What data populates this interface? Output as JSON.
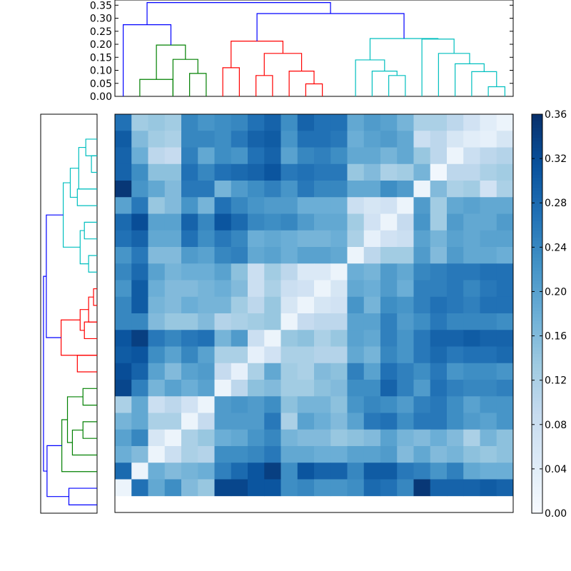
{
  "chart_data": [
    {
      "type": "dendrogram",
      "orientation": "top",
      "ylim": [
        0,
        0.37
      ],
      "yticks": [
        "0.00",
        "0.05",
        "0.10",
        "0.15",
        "0.20",
        "0.25",
        "0.30",
        "0.35"
      ],
      "tick_values": [
        0,
        0.05,
        0.1,
        0.15,
        0.2,
        0.25,
        0.3,
        0.35
      ],
      "leaf_count": 24,
      "links": [
        {
          "a": 1,
          "b": 3,
          "h": 0.065,
          "color": "#008000"
        },
        {
          "a": 4,
          "b": 5,
          "h": 0.088,
          "color": "#008000"
        },
        {
          "a": 3,
          "b": 4.5,
          "h": 0.142,
          "color": "#008000"
        },
        {
          "a": 2,
          "b": 3.75,
          "h": 0.197,
          "color": "#008000"
        },
        {
          "a": 0,
          "b": 2.875,
          "h": 0.275,
          "color": "#0000ff"
        },
        {
          "a": 6,
          "b": 7,
          "h": 0.11,
          "color": "#ff0000"
        },
        {
          "a": 8,
          "b": 9,
          "h": 0.08,
          "color": "#ff0000"
        },
        {
          "a": 11,
          "b": 12,
          "h": 0.048,
          "color": "#ff0000"
        },
        {
          "a": 10,
          "b": 11.5,
          "h": 0.097,
          "color": "#ff0000"
        },
        {
          "a": 8.5,
          "b": 10.75,
          "h": 0.165,
          "color": "#ff0000"
        },
        {
          "a": 6.5,
          "b": 9.625,
          "h": 0.212,
          "color": "#ff0000"
        },
        {
          "a": 16,
          "b": 17,
          "h": 0.08,
          "color": "#00bfbf"
        },
        {
          "a": 15,
          "b": 16.5,
          "h": 0.097,
          "color": "#00bfbf"
        },
        {
          "a": 14,
          "b": 15.75,
          "h": 0.14,
          "color": "#00bfbf"
        },
        {
          "a": 22,
          "b": 23,
          "h": 0.037,
          "color": "#00bfbf"
        },
        {
          "a": 21,
          "b": 22.5,
          "h": 0.095,
          "color": "#00bfbf"
        },
        {
          "a": 20,
          "b": 21.75,
          "h": 0.125,
          "color": "#00bfbf"
        },
        {
          "a": 19,
          "b": 20.875,
          "h": 0.165,
          "color": "#00bfbf"
        },
        {
          "a": 18,
          "b": 19.9375,
          "h": 0.22,
          "color": "#00bfbf"
        },
        {
          "a": 14.875,
          "b": 18.96875,
          "h": 0.222,
          "color": "#00bfbf"
        },
        {
          "a": 8.0625,
          "b": 16.921875,
          "h": 0.318,
          "color": "#0000ff"
        },
        {
          "a": 1.4375,
          "b": 12.4921875,
          "h": 0.36,
          "color": "#0000ff"
        }
      ]
    },
    {
      "type": "dendrogram",
      "orientation": "left",
      "leaf_count": 24,
      "scale_max": 0.37,
      "links": [
        {
          "a": 0,
          "b": 1,
          "h": 0.2,
          "color": "#0000ff"
        },
        {
          "a": 4,
          "b": 5,
          "h": 0.1,
          "color": "#008000"
        },
        {
          "a": 3,
          "b": 4.5,
          "h": 0.175,
          "color": "#008000"
        },
        {
          "a": 6,
          "b": 7,
          "h": 0.1,
          "color": "#008000"
        },
        {
          "a": 3.75,
          "b": 6.5,
          "h": 0.21,
          "color": "#008000"
        },
        {
          "a": 2,
          "b": 5.125,
          "h": 0.25,
          "color": "#008000"
        },
        {
          "a": 0.5,
          "b": 3.5625,
          "h": 0.355,
          "color": "#0000ff"
        },
        {
          "a": 8,
          "b": 9,
          "h": 0.14,
          "color": "#ff0000"
        },
        {
          "a": 10,
          "b": 11,
          "h": 0.09,
          "color": "#ff0000"
        },
        {
          "a": 12,
          "b": 13,
          "h": 0.025,
          "color": "#ff0000"
        },
        {
          "a": 11,
          "b": 12.5,
          "h": 0.06,
          "color": "#ff0000"
        },
        {
          "a": 10.5,
          "b": 11.75,
          "h": 0.12,
          "color": "#ff0000"
        },
        {
          "a": 9,
          "b": 11.125,
          "h": 0.255,
          "color": "#ff0000"
        },
        {
          "a": 14,
          "b": 15,
          "h": 0.06,
          "color": "#00bfbf"
        },
        {
          "a": 16,
          "b": 17,
          "h": 0.09,
          "color": "#00bfbf"
        },
        {
          "a": 14.5,
          "b": 16.5,
          "h": 0.12,
          "color": "#00bfbf"
        },
        {
          "a": 18,
          "b": 19,
          "h": 0.14,
          "color": "#00bfbf"
        },
        {
          "a": 20,
          "b": 21,
          "h": 0.04,
          "color": "#00bfbf"
        },
        {
          "a": 21,
          "b": 22,
          "h": 0.08,
          "color": "#00bfbf"
        },
        {
          "a": 19,
          "b": 21.5,
          "h": 0.13,
          "color": "#00bfbf"
        },
        {
          "a": 18.5,
          "b": 20.25,
          "h": 0.19,
          "color": "#00bfbf"
        },
        {
          "a": 15.5,
          "b": 19.375,
          "h": 0.24,
          "color": "#00bfbf"
        },
        {
          "a": 10.0625,
          "b": 17.4375,
          "h": 0.36,
          "color": "#0000ff"
        },
        {
          "a": 2.03125,
          "b": 13.75,
          "h": 0.38,
          "color": "#0000ff"
        }
      ]
    },
    {
      "type": "heatmap",
      "rows": 24,
      "cols": 24,
      "colormap": "Blues",
      "vmin": 0,
      "vmax": 0.36,
      "colorbar_ticks": [
        "0.00",
        "0.04",
        "0.08",
        "0.12",
        "0.16",
        "0.20",
        "0.24",
        "0.28",
        "0.32",
        "0.36"
      ],
      "colorbar_tick_values": [
        0,
        0.04,
        0.08,
        0.12,
        0.16,
        0.2,
        0.24,
        0.28,
        0.32,
        0.36
      ],
      "values": [
        [
          0.27,
          0.13,
          0.14,
          0.13,
          0.24,
          0.22,
          0.23,
          0.24,
          0.27,
          0.29,
          0.23,
          0.29,
          0.27,
          0.27,
          0.19,
          0.21,
          0.2,
          0.17,
          0.12,
          0.12,
          0.1,
          0.07,
          0.04,
          0.02
        ],
        [
          0.3,
          0.16,
          0.13,
          0.12,
          0.24,
          0.24,
          0.23,
          0.26,
          0.29,
          0.3,
          0.22,
          0.27,
          0.27,
          0.26,
          0.18,
          0.2,
          0.21,
          0.19,
          0.08,
          0.1,
          0.06,
          0.04,
          0.03,
          0.06
        ],
        [
          0.29,
          0.18,
          0.1,
          0.09,
          0.25,
          0.19,
          0.23,
          0.22,
          0.27,
          0.29,
          0.2,
          0.24,
          0.25,
          0.23,
          0.19,
          0.19,
          0.17,
          0.19,
          0.14,
          0.1,
          0.02,
          0.08,
          0.1,
          0.11
        ],
        [
          0.29,
          0.23,
          0.15,
          0.15,
          0.27,
          0.24,
          0.27,
          0.28,
          0.29,
          0.31,
          0.26,
          0.27,
          0.26,
          0.26,
          0.14,
          0.16,
          0.12,
          0.13,
          0.17,
          0.01,
          0.1,
          0.1,
          0.12,
          0.13
        ],
        [
          0.35,
          0.22,
          0.19,
          0.16,
          0.26,
          0.26,
          0.17,
          0.21,
          0.23,
          0.25,
          0.22,
          0.26,
          0.24,
          0.24,
          0.19,
          0.19,
          0.23,
          0.21,
          0.02,
          0.16,
          0.12,
          0.13,
          0.07,
          0.12
        ],
        [
          0.2,
          0.26,
          0.14,
          0.16,
          0.22,
          0.17,
          0.27,
          0.24,
          0.22,
          0.21,
          0.21,
          0.18,
          0.18,
          0.18,
          0.08,
          0.06,
          0.07,
          0.02,
          0.21,
          0.13,
          0.19,
          0.2,
          0.19,
          0.19
        ],
        [
          0.28,
          0.32,
          0.2,
          0.2,
          0.29,
          0.24,
          0.31,
          0.28,
          0.24,
          0.23,
          0.24,
          0.21,
          0.19,
          0.19,
          0.13,
          0.07,
          0.02,
          0.09,
          0.22,
          0.13,
          0.21,
          0.19,
          0.19,
          0.21
        ],
        [
          0.27,
          0.29,
          0.19,
          0.19,
          0.27,
          0.23,
          0.26,
          0.24,
          0.18,
          0.19,
          0.18,
          0.17,
          0.17,
          0.18,
          0.12,
          0.03,
          0.07,
          0.08,
          0.2,
          0.17,
          0.2,
          0.19,
          0.2,
          0.2
        ],
        [
          0.22,
          0.26,
          0.16,
          0.16,
          0.21,
          0.2,
          0.24,
          0.25,
          0.19,
          0.2,
          0.18,
          0.2,
          0.2,
          0.19,
          0.02,
          0.1,
          0.13,
          0.13,
          0.21,
          0.16,
          0.21,
          0.19,
          0.19,
          0.18
        ],
        [
          0.24,
          0.28,
          0.2,
          0.17,
          0.18,
          0.18,
          0.2,
          0.15,
          0.08,
          0.13,
          0.1,
          0.05,
          0.05,
          0.02,
          0.18,
          0.17,
          0.21,
          0.19,
          0.24,
          0.25,
          0.26,
          0.26,
          0.27,
          0.27
        ],
        [
          0.22,
          0.3,
          0.18,
          0.16,
          0.16,
          0.17,
          0.18,
          0.16,
          0.08,
          0.12,
          0.08,
          0.07,
          0.02,
          0.06,
          0.19,
          0.18,
          0.21,
          0.18,
          0.25,
          0.25,
          0.26,
          0.24,
          0.26,
          0.27
        ],
        [
          0.24,
          0.3,
          0.17,
          0.16,
          0.18,
          0.17,
          0.17,
          0.13,
          0.1,
          0.14,
          0.06,
          0.02,
          0.06,
          0.07,
          0.22,
          0.17,
          0.23,
          0.22,
          0.25,
          0.27,
          0.26,
          0.25,
          0.27,
          0.27
        ],
        [
          0.24,
          0.24,
          0.16,
          0.14,
          0.14,
          0.16,
          0.11,
          0.12,
          0.13,
          0.14,
          0.02,
          0.09,
          0.1,
          0.1,
          0.2,
          0.2,
          0.25,
          0.21,
          0.23,
          0.26,
          0.24,
          0.24,
          0.24,
          0.23
        ],
        [
          0.31,
          0.34,
          0.26,
          0.24,
          0.26,
          0.27,
          0.17,
          0.21,
          0.08,
          0.02,
          0.14,
          0.15,
          0.12,
          0.14,
          0.2,
          0.19,
          0.25,
          0.22,
          0.26,
          0.29,
          0.29,
          0.3,
          0.29,
          0.29
        ],
        [
          0.3,
          0.31,
          0.23,
          0.2,
          0.24,
          0.2,
          0.12,
          0.12,
          0.03,
          0.07,
          0.12,
          0.12,
          0.11,
          0.11,
          0.19,
          0.17,
          0.24,
          0.22,
          0.26,
          0.28,
          0.26,
          0.27,
          0.27,
          0.28
        ],
        [
          0.32,
          0.29,
          0.2,
          0.16,
          0.2,
          0.21,
          0.09,
          0.03,
          0.12,
          0.19,
          0.13,
          0.12,
          0.16,
          0.15,
          0.25,
          0.2,
          0.27,
          0.25,
          0.23,
          0.26,
          0.22,
          0.23,
          0.23,
          0.22
        ],
        [
          0.33,
          0.25,
          0.17,
          0.2,
          0.18,
          0.2,
          0.02,
          0.1,
          0.15,
          0.16,
          0.13,
          0.13,
          0.15,
          0.16,
          0.23,
          0.23,
          0.29,
          0.25,
          0.21,
          0.27,
          0.25,
          0.24,
          0.24,
          0.25
        ],
        [
          0.12,
          0.19,
          0.08,
          0.1,
          0.07,
          0.02,
          0.21,
          0.22,
          0.21,
          0.23,
          0.15,
          0.17,
          0.17,
          0.15,
          0.22,
          0.24,
          0.23,
          0.21,
          0.25,
          0.26,
          0.23,
          0.2,
          0.22,
          0.22
        ],
        [
          0.17,
          0.19,
          0.12,
          0.12,
          0.02,
          0.09,
          0.21,
          0.21,
          0.21,
          0.26,
          0.12,
          0.2,
          0.18,
          0.16,
          0.2,
          0.26,
          0.27,
          0.23,
          0.26,
          0.26,
          0.23,
          0.21,
          0.2,
          0.22
        ],
        [
          0.2,
          0.24,
          0.06,
          0.02,
          0.12,
          0.14,
          0.18,
          0.19,
          0.22,
          0.24,
          0.17,
          0.16,
          0.16,
          0.14,
          0.15,
          0.16,
          0.2,
          0.17,
          0.16,
          0.18,
          0.16,
          0.12,
          0.17,
          0.15
        ],
        [
          0.18,
          0.16,
          0.02,
          0.08,
          0.12,
          0.11,
          0.23,
          0.23,
          0.24,
          0.26,
          0.19,
          0.19,
          0.18,
          0.18,
          0.2,
          0.2,
          0.21,
          0.16,
          0.19,
          0.16,
          0.17,
          0.15,
          0.14,
          0.15
        ],
        [
          0.28,
          0.02,
          0.18,
          0.16,
          0.17,
          0.18,
          0.25,
          0.28,
          0.31,
          0.34,
          0.23,
          0.31,
          0.29,
          0.29,
          0.24,
          0.3,
          0.3,
          0.26,
          0.25,
          0.22,
          0.25,
          0.19,
          0.18,
          0.18
        ],
        [
          0.02,
          0.27,
          0.19,
          0.23,
          0.16,
          0.14,
          0.33,
          0.33,
          0.31,
          0.31,
          0.23,
          0.24,
          0.22,
          0.22,
          0.23,
          0.28,
          0.27,
          0.24,
          0.35,
          0.29,
          0.29,
          0.29,
          0.3,
          0.29
        ]
      ]
    }
  ]
}
